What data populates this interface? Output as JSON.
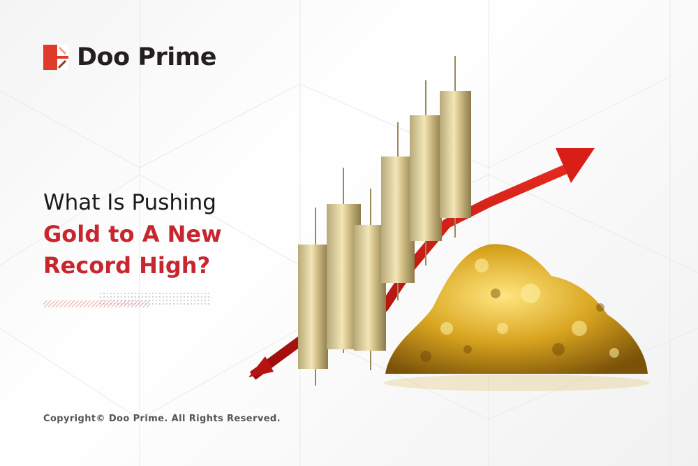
{
  "brand": {
    "name": "Doo Prime",
    "accent": "#e03a2a",
    "logo_dark": "#8a3a1e"
  },
  "headline": {
    "line1": "What Is Pushing",
    "line2": "Gold to A New",
    "line3": "Record High?",
    "accent": "#c8262d"
  },
  "footer": {
    "copyright": "Copyright© Doo Prime. All Rights Reserved."
  },
  "illustration": {
    "subjects": [
      "gold-candlesticks",
      "red-rising-arrow",
      "gold-nugget-pile"
    ]
  }
}
